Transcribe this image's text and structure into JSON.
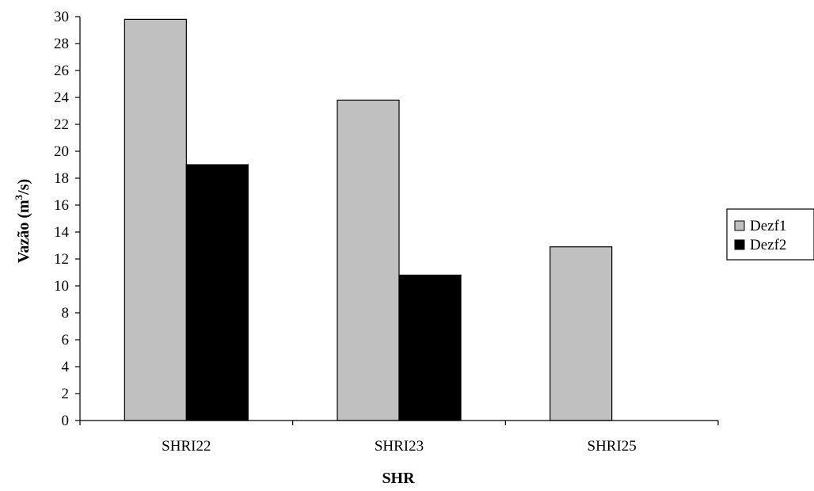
{
  "chart_data": {
    "type": "bar",
    "categories": [
      "SHRI22",
      "SHRI23",
      "SHRI25"
    ],
    "series": [
      {
        "name": "Dezf1",
        "values": [
          29.8,
          23.8,
          12.9
        ],
        "color": "#c0c0c0"
      },
      {
        "name": "Dezf2",
        "values": [
          19.0,
          10.8,
          0
        ],
        "color": "#000000"
      }
    ],
    "xlabel": "SHR",
    "ylabel": "Vazão (m",
    "ylabel_sup": "3",
    "ylabel_suffix": "/s)",
    "ylim": [
      0,
      30
    ],
    "ytick_step": 2,
    "grid": false,
    "legend_position": "right"
  }
}
